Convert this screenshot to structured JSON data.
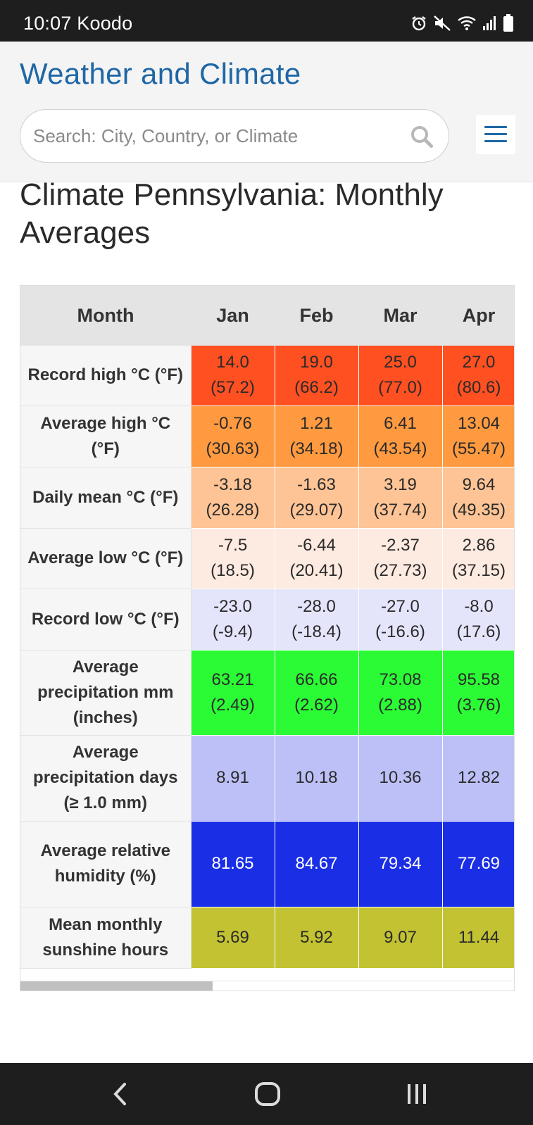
{
  "status_bar": {
    "time_carrier": "10:07 Koodo",
    "icons": [
      "alarm-icon",
      "mute-icon",
      "wifi-icon",
      "signal-icon",
      "battery-icon"
    ]
  },
  "header": {
    "brand": "Weather and Climate",
    "search_placeholder": "Search: City, Country, or Climate",
    "icons": [
      "search-icon",
      "hamburger-menu-icon"
    ]
  },
  "page": {
    "title": "Climate Pennsylvania: Monthly Averages"
  },
  "table": {
    "columns": [
      "Month",
      "Jan",
      "Feb",
      "Mar",
      "Apr"
    ],
    "rows": [
      {
        "label": "Record high °C (°F)",
        "color": "#ff5022",
        "text_color": "#2a2a2a",
        "cells": [
          [
            "14.0",
            "(57.2)"
          ],
          [
            "19.0",
            "(66.2)"
          ],
          [
            "25.0",
            "(77.0)"
          ],
          [
            "27.0",
            "(80.6)"
          ]
        ]
      },
      {
        "label": "Average high °C (°F)",
        "color": "#ff9a40",
        "text_color": "#2a2a2a",
        "cells": [
          [
            "-0.76",
            "(30.63)"
          ],
          [
            "1.21",
            "(34.18)"
          ],
          [
            "6.41",
            "(43.54)"
          ],
          [
            "13.04",
            "(55.47)"
          ]
        ]
      },
      {
        "label": "Daily mean °C (°F)",
        "color": "#ffc496",
        "text_color": "#2a2a2a",
        "cells": [
          [
            "-3.18",
            "(26.28)"
          ],
          [
            "-1.63",
            "(29.07)"
          ],
          [
            "3.19",
            "(37.74)"
          ],
          [
            "9.64",
            "(49.35)"
          ]
        ]
      },
      {
        "label": "Average low °C (°F)",
        "color": "#fdeae0",
        "text_color": "#2a2a2a",
        "cells": [
          [
            "-7.5",
            "(18.5)"
          ],
          [
            "-6.44",
            "(20.41)"
          ],
          [
            "-2.37",
            "(27.73)"
          ],
          [
            "2.86",
            "(37.15)"
          ]
        ]
      },
      {
        "label": "Record low °C (°F)",
        "color": "#e4e4fb",
        "text_color": "#2a2a2a",
        "cells": [
          [
            "-23.0",
            "(-9.4)"
          ],
          [
            "-28.0",
            "(-18.4)"
          ],
          [
            "-27.0",
            "(-16.6)"
          ],
          [
            "-8.0",
            "(17.6)"
          ]
        ]
      },
      {
        "label": "Average precipitation mm (inches)",
        "color": "#2bfb35",
        "text_color": "#2a2a2a",
        "cells": [
          [
            "63.21",
            "(2.49)"
          ],
          [
            "66.66",
            "(2.62)"
          ],
          [
            "73.08",
            "(2.88)"
          ],
          [
            "95.58",
            "(3.76)"
          ]
        ]
      },
      {
        "label": "Average precipitation days (≥ 1.0 mm)",
        "color": "#bcc0f7",
        "text_color": "#2a2a2a",
        "cells": [
          [
            "8.91"
          ],
          [
            "10.18"
          ],
          [
            "10.36"
          ],
          [
            "12.82"
          ]
        ]
      },
      {
        "label": "Average relative humidity (%)",
        "color": "#1a2ee6",
        "text_color": "#ffffff",
        "cells": [
          [
            "81.65"
          ],
          [
            "84.67"
          ],
          [
            "79.34"
          ],
          [
            "77.69"
          ]
        ]
      },
      {
        "label": "Mean monthly sunshine hours",
        "color": "#c2c232",
        "text_color": "#2a2a2a",
        "cells": [
          [
            "5.69"
          ],
          [
            "5.92"
          ],
          [
            "9.07"
          ],
          [
            "11.44"
          ]
        ]
      }
    ]
  },
  "nav_bar": {
    "icons": [
      "back-icon",
      "home-icon",
      "recent-apps-icon"
    ]
  }
}
